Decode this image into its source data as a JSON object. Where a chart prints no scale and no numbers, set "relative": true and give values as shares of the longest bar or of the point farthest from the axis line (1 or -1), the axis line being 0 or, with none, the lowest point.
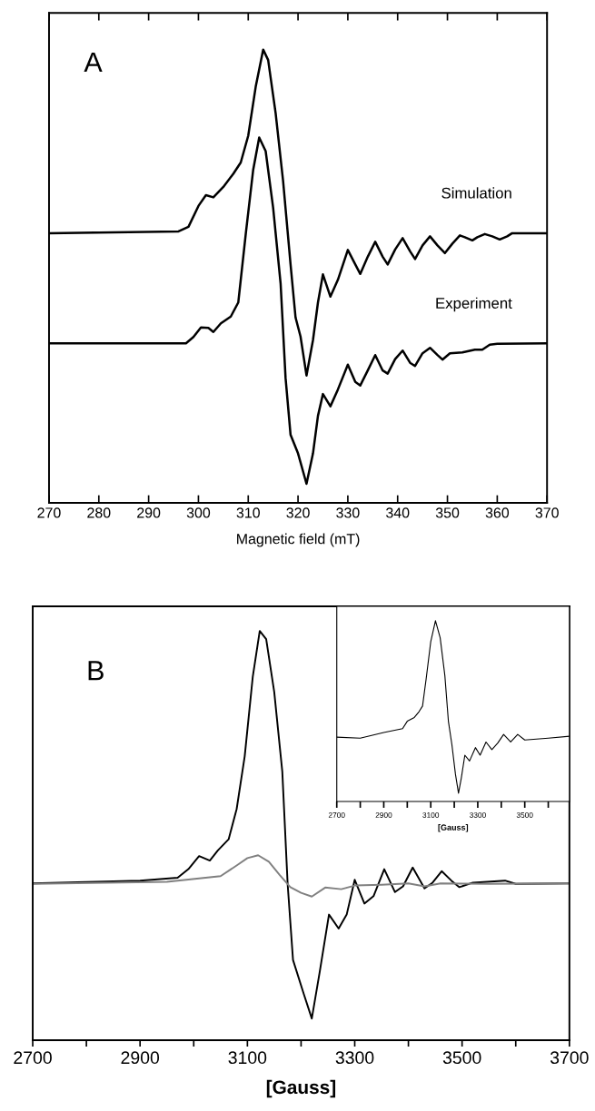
{
  "chart_data": [
    {
      "type": "line",
      "relative": true,
      "xlabel": "Magnetic field (mT)",
      "xlim": [
        270,
        370
      ],
      "xticks": [
        270,
        280,
        290,
        300,
        310,
        320,
        330,
        340,
        350,
        360,
        370
      ],
      "tick_labels": "x",
      "legend": false,
      "grid": false,
      "annotations": [
        "A"
      ],
      "series": [
        {
          "name": "Simulation",
          "color": "#000000",
          "x": [
            270,
            296,
            298,
            300,
            301.5,
            303,
            305,
            307,
            308.5,
            310,
            311.5,
            313,
            314,
            315.5,
            317,
            318.5,
            319.5,
            320.5,
            321.7,
            323,
            324,
            325,
            326.5,
            328,
            330,
            331.5,
            332.5,
            334,
            335.5,
            337,
            338,
            339.5,
            341,
            342.5,
            343.5,
            345,
            346.5,
            348,
            349.5,
            351,
            352.5,
            353.5,
            355,
            356,
            357.5,
            359,
            360.5,
            362,
            363,
            370
          ],
          "values": [
            0.595,
            0.599,
            0.609,
            0.655,
            0.679,
            0.674,
            0.697,
            0.726,
            0.751,
            0.81,
            0.918,
            1,
            0.977,
            0.86,
            0.71,
            0.526,
            0.409,
            0.367,
            0.281,
            0.359,
            0.442,
            0.504,
            0.455,
            0.492,
            0.558,
            0.526,
            0.505,
            0.543,
            0.576,
            0.543,
            0.526,
            0.559,
            0.584,
            0.555,
            0.538,
            0.568,
            0.588,
            0.568,
            0.551,
            0.572,
            0.59,
            0.586,
            0.579,
            0.586,
            0.593,
            0.588,
            0.581,
            0.588,
            0.595,
            0.595
          ]
        },
        {
          "name": "Experiment",
          "color": "#000000",
          "x": [
            270,
            297.5,
            299,
            300.5,
            302,
            303,
            304.5,
            306.5,
            308,
            309.5,
            311,
            312.2,
            313.5,
            315,
            316.5,
            317.5,
            318.5,
            320,
            321.7,
            323,
            324,
            325,
            326.5,
            328,
            330,
            331.5,
            332.5,
            334,
            335.5,
            337,
            338,
            339.5,
            341,
            342.5,
            343.5,
            345,
            346.5,
            348,
            349,
            350.5,
            353,
            355.5,
            357,
            358.5,
            360,
            370
          ],
          "values": [
            0.352,
            0.352,
            0.366,
            0.387,
            0.386,
            0.377,
            0.396,
            0.411,
            0.442,
            0.593,
            0.735,
            0.806,
            0.776,
            0.651,
            0.484,
            0.275,
            0.15,
            0.109,
            0.042,
            0.109,
            0.192,
            0.24,
            0.213,
            0.25,
            0.305,
            0.267,
            0.259,
            0.292,
            0.326,
            0.292,
            0.285,
            0.317,
            0.336,
            0.309,
            0.302,
            0.33,
            0.342,
            0.326,
            0.316,
            0.33,
            0.332,
            0.338,
            0.338,
            0.349,
            0.351,
            0.352
          ]
        }
      ]
    },
    {
      "type": "line",
      "relative": true,
      "xlabel": "[Gauss]",
      "xlim": [
        2700,
        3700
      ],
      "xticks": [
        2700,
        {
          "value": 2800,
          "label": null
        },
        2900,
        {
          "value": 3000,
          "label": null
        },
        3100,
        {
          "value": 3200,
          "label": null
        },
        3300,
        {
          "value": 3400,
          "label": null
        },
        3500,
        {
          "value": 3600,
          "label": null
        },
        3700
      ],
      "tick_labels": "x",
      "legend": false,
      "grid": false,
      "annotations": [
        "B"
      ],
      "series": [
        {
          "color": "#000000",
          "x": [
            2700,
            2900,
            2970,
            2990,
            3010,
            3030,
            3045,
            3065,
            3080,
            3095,
            3110,
            3123,
            3135,
            3150,
            3165,
            3175,
            3185,
            3205,
            3220,
            3235,
            3252,
            3270,
            3285,
            3300,
            3318,
            3335,
            3355,
            3375,
            3390,
            3408,
            3430,
            3445,
            3462,
            3480,
            3495,
            3520,
            3580,
            3600,
            3700
          ],
          "values": [
            0.383,
            0.39,
            0.397,
            0.418,
            0.45,
            0.439,
            0.464,
            0.491,
            0.565,
            0.694,
            0.888,
            1,
            0.98,
            0.851,
            0.657,
            0.381,
            0.196,
            0.113,
            0.053,
            0.169,
            0.307,
            0.273,
            0.307,
            0.392,
            0.334,
            0.352,
            0.418,
            0.362,
            0.376,
            0.422,
            0.371,
            0.385,
            0.413,
            0.39,
            0.374,
            0.385,
            0.39,
            0.382,
            0.383
          ]
        },
        {
          "color": "#808080",
          "x": [
            2700,
            2950,
            3050,
            3080,
            3100,
            3120,
            3140,
            3160,
            3180,
            3200,
            3220,
            3245,
            3275,
            3300,
            3350,
            3400,
            3430,
            3460,
            3550,
            3700
          ],
          "values": [
            0.382,
            0.387,
            0.401,
            0.427,
            0.445,
            0.452,
            0.436,
            0.404,
            0.374,
            0.36,
            0.351,
            0.373,
            0.369,
            0.378,
            0.38,
            0.383,
            0.376,
            0.383,
            0.382,
            0.383
          ]
        }
      ]
    },
    {
      "type": "line",
      "relative": true,
      "xlabel": "[Gauss]",
      "xlim": [
        2700,
        3690
      ],
      "xticks": [
        2700,
        {
          "value": 2800,
          "label": null
        },
        2900,
        {
          "value": 3000,
          "label": null
        },
        3100,
        {
          "value": 3200,
          "label": null
        },
        3300,
        {
          "value": 3400,
          "label": null
        },
        3500,
        {
          "value": 3600,
          "label": null
        }
      ],
      "tick_labels": "x",
      "legend": false,
      "grid": false,
      "series": [
        {
          "color": "#000000",
          "x": [
            2700,
            2800,
            2900,
            2980,
            3000,
            3030,
            3050,
            3065,
            3080,
            3100,
            3120,
            3140,
            3160,
            3175,
            3190,
            3205,
            3218,
            3230,
            3245,
            3265,
            3290,
            3310,
            3335,
            3360,
            3385,
            3410,
            3440,
            3470,
            3500,
            3600,
            3690
          ],
          "values": [
            0.356,
            0.35,
            0.382,
            0.403,
            0.444,
            0.465,
            0.497,
            0.528,
            0.675,
            0.885,
            1,
            0.906,
            0.696,
            0.444,
            0.314,
            0.151,
            0.046,
            0.13,
            0.256,
            0.224,
            0.298,
            0.256,
            0.329,
            0.287,
            0.323,
            0.371,
            0.329,
            0.371,
            0.34,
            0.35,
            0.361
          ]
        }
      ]
    }
  ]
}
